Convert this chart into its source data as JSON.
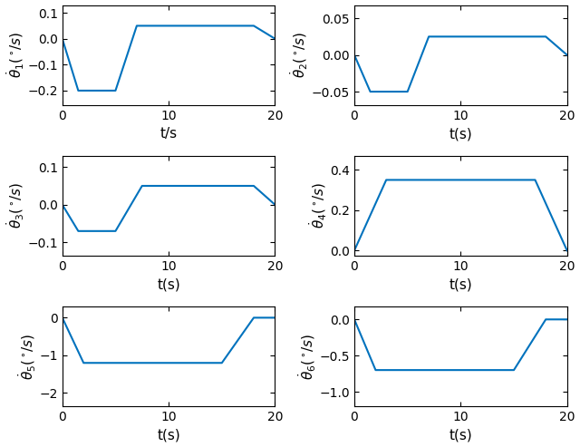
{
  "line_color": "#0072BD",
  "line_width": 1.5,
  "t_end": 20,
  "plots": [
    {
      "ylabel": "$\\dot{\\theta}_1(^\\circ\\!/s)$",
      "xlabel": "t/s",
      "ylim": [
        -0.255,
        0.13
      ],
      "yticks": [
        0.1,
        0,
        -0.1,
        -0.2
      ],
      "xticks": [
        0,
        10,
        20
      ],
      "keypoints": [
        [
          0,
          0
        ],
        [
          1.5,
          -0.2
        ],
        [
          5,
          -0.2
        ],
        [
          7,
          0.05
        ],
        [
          18,
          0.05
        ],
        [
          20,
          0
        ]
      ]
    },
    {
      "ylabel": "$\\dot{\\theta}_2(^\\circ\\!/s)$",
      "xlabel": "t(s)",
      "ylim": [
        -0.068,
        0.068
      ],
      "yticks": [
        0.05,
        0,
        -0.05
      ],
      "xticks": [
        0,
        10,
        20
      ],
      "keypoints": [
        [
          0,
          0
        ],
        [
          1.5,
          -0.05
        ],
        [
          5,
          -0.05
        ],
        [
          7,
          0.025
        ],
        [
          18,
          0.025
        ],
        [
          20,
          0
        ]
      ]
    },
    {
      "ylabel": "$\\dot{\\theta}_3(^\\circ\\!/s)$",
      "xlabel": "t(s)",
      "ylim": [
        -0.135,
        0.13
      ],
      "yticks": [
        0.1,
        0,
        -0.1
      ],
      "xticks": [
        0,
        10,
        20
      ],
      "keypoints": [
        [
          0,
          0
        ],
        [
          1.5,
          -0.07
        ],
        [
          5,
          -0.07
        ],
        [
          7.5,
          0.05
        ],
        [
          18,
          0.05
        ],
        [
          20,
          0
        ]
      ]
    },
    {
      "ylabel": "$\\dot{\\theta}_4(^\\circ\\!/s)$",
      "xlabel": "t(s)",
      "ylim": [
        -0.025,
        0.47
      ],
      "yticks": [
        0.4,
        0.2,
        0
      ],
      "xticks": [
        0,
        10,
        20
      ],
      "keypoints": [
        [
          0,
          0
        ],
        [
          3,
          0.35
        ],
        [
          17,
          0.35
        ],
        [
          20,
          0
        ]
      ]
    },
    {
      "ylabel": "$\\dot{\\theta}_5(^\\circ\\!/s)$",
      "xlabel": "t(s)",
      "ylim": [
        -2.35,
        0.3
      ],
      "yticks": [
        0,
        -1,
        -2
      ],
      "xticks": [
        0,
        10,
        20
      ],
      "keypoints": [
        [
          0,
          0
        ],
        [
          2,
          -1.2
        ],
        [
          15,
          -1.2
        ],
        [
          18,
          0
        ],
        [
          20,
          0
        ]
      ]
    },
    {
      "ylabel": "$\\dot{\\theta}_6(^\\circ\\!/s)$",
      "xlabel": "t(s)",
      "ylim": [
        -1.2,
        0.18
      ],
      "yticks": [
        0,
        -0.5,
        -1
      ],
      "xticks": [
        0,
        10,
        20
      ],
      "keypoints": [
        [
          0,
          0
        ],
        [
          2,
          -0.7
        ],
        [
          15,
          -0.7
        ],
        [
          18,
          0
        ],
        [
          20,
          0
        ]
      ]
    }
  ]
}
